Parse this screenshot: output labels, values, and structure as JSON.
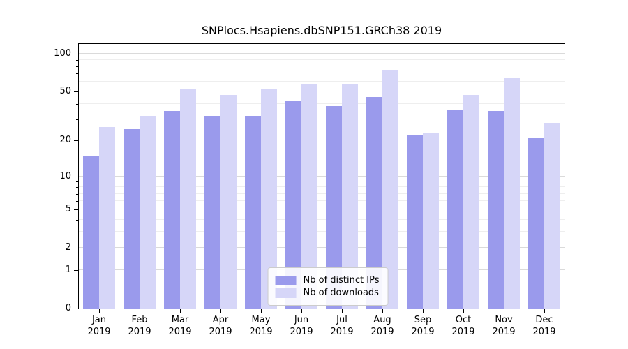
{
  "chart_data": {
    "type": "bar",
    "title": "SNPlocs.Hsapiens.dbSNP151.GRCh38 2019",
    "categories": [
      "Jan",
      "Feb",
      "Mar",
      "Apr",
      "May",
      "Jun",
      "Jul",
      "Aug",
      "Sep",
      "Oct",
      "Nov",
      "Dec"
    ],
    "year_label": "2019",
    "series": [
      {
        "key": "distinct-ips",
        "name": "Nb of distinct IPs",
        "color": "#9a9aec",
        "values": [
          15,
          25,
          35,
          32,
          32,
          42,
          38,
          45,
          22,
          36,
          35,
          21
        ]
      },
      {
        "key": "downloads",
        "name": "Nb of downloads",
        "color": "#d6d6f8",
        "values": [
          26,
          32,
          53,
          47,
          53,
          58,
          58,
          74,
          23,
          47,
          64,
          28
        ]
      }
    ],
    "y_ticks": [
      0,
      1,
      2,
      5,
      10,
      20,
      50,
      100
    ],
    "y_minor_ticks": [
      3,
      4,
      6,
      7,
      8,
      9,
      30,
      40,
      60,
      70,
      80,
      90
    ],
    "y_scale": "log1p",
    "y_max": 120,
    "ylim": [
      0,
      120
    ],
    "xlabel": "",
    "ylabel": "",
    "grid": true,
    "legend_position": "lower center"
  }
}
